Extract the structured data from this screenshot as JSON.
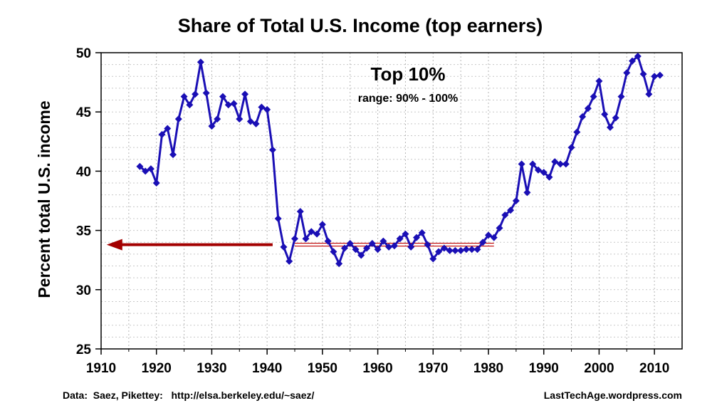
{
  "chart_data": {
    "type": "line",
    "title": "Share of Total U.S. Income (top earners)",
    "ylabel": "Percent total U.S. income",
    "xlim": [
      1910,
      2015
    ],
    "ylim": [
      25,
      50
    ],
    "xticks": [
      1910,
      1920,
      1930,
      1940,
      1950,
      1960,
      1970,
      1980,
      1990,
      2000,
      2010
    ],
    "yticks": [
      25,
      30,
      35,
      40,
      45,
      50
    ],
    "grid": true,
    "colors": {
      "line": "#1a0fb5",
      "marker": "#1a0fb5",
      "arrow": "#a30000",
      "band": "#c00000"
    },
    "series": [
      {
        "x": [
          1917,
          1918,
          1919,
          1920,
          1921,
          1922,
          1923,
          1924,
          1925,
          1926,
          1927,
          1928,
          1929,
          1930,
          1931,
          1932,
          1933,
          1934,
          1935,
          1936,
          1937,
          1938,
          1939,
          1940,
          1941,
          1942,
          1943,
          1944,
          1945,
          1946,
          1947,
          1948,
          1949,
          1950,
          1951,
          1952,
          1953,
          1954,
          1955,
          1956,
          1957,
          1958,
          1959,
          1960,
          1961,
          1962,
          1963,
          1964,
          1965,
          1966,
          1967,
          1968,
          1969,
          1970,
          1971,
          1972,
          1973,
          1974,
          1975,
          1976,
          1977,
          1978,
          1979,
          1980,
          1981,
          1982,
          1983,
          1984,
          1985,
          1986,
          1987,
          1988,
          1989,
          1990,
          1991,
          1992,
          1993,
          1994,
          1995,
          1996,
          1997,
          1998,
          1999,
          2000,
          2001,
          2002,
          2003,
          2004,
          2005,
          2006,
          2007,
          2008,
          2009,
          2010,
          2011
        ],
        "y": [
          40.4,
          40.0,
          40.2,
          39.0,
          43.1,
          43.6,
          41.4,
          44.4,
          46.3,
          45.6,
          46.5,
          49.2,
          46.6,
          43.8,
          44.4,
          46.3,
          45.6,
          45.7,
          44.4,
          46.5,
          44.2,
          44.0,
          45.4,
          45.2,
          41.8,
          36.0,
          33.6,
          32.4,
          34.3,
          36.6,
          34.3,
          34.9,
          34.7,
          35.5,
          34.1,
          33.2,
          32.2,
          33.5,
          33.9,
          33.4,
          32.9,
          33.5,
          33.9,
          33.4,
          34.1,
          33.6,
          33.7,
          34.3,
          34.7,
          33.6,
          34.4,
          34.8,
          33.8,
          32.6,
          33.2,
          33.5,
          33.3,
          33.3,
          33.3,
          33.4,
          33.4,
          33.4,
          34.0,
          34.6,
          34.4,
          35.2,
          36.3,
          36.7,
          37.5,
          40.6,
          38.2,
          40.6,
          40.1,
          39.9,
          39.5,
          40.8,
          40.6,
          40.6,
          42.0,
          43.3,
          44.6,
          45.3,
          46.3,
          47.6,
          44.8,
          43.7,
          44.5,
          46.3,
          48.3,
          49.3,
          49.7,
          48.2,
          46.5,
          48.0,
          48.1
        ]
      }
    ],
    "annotations": {
      "main": "Top 10%",
      "sub": "range: 90% - 100%",
      "band": {
        "x": [
          1945,
          1981
        ],
        "y": 33.8
      },
      "arrow": {
        "x_from": 1941,
        "x_to": 1911,
        "y": 33.8
      }
    },
    "footer": {
      "source": "Data:  Saez, Pikettey:   http://elsa.berkeley.edu/~saez/",
      "credit": "LastTechAge.wordpress.com"
    }
  }
}
